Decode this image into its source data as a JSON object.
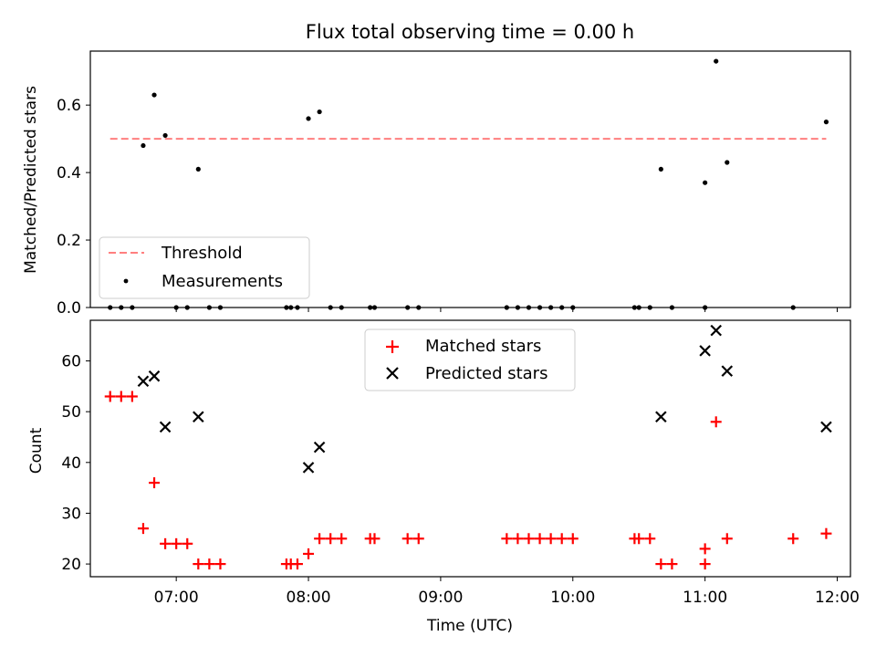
{
  "chart_data": [
    {
      "type": "scatter",
      "title": "Flux total observing time = 0.00 h",
      "xlabel": "",
      "ylabel": "Matched/Predicted stars",
      "ylim": [
        0,
        0.76
      ],
      "yticks": [
        "0.0",
        "0.2",
        "0.4",
        "0.6"
      ],
      "ytick_values": [
        0,
        0.2,
        0.4,
        0.6
      ],
      "legend_position": "lower-left",
      "series": [
        {
          "name": "Threshold",
          "kind": "dashed-line",
          "color": "#ff7f7f",
          "x": [
            "06:30",
            "11:55"
          ],
          "y": [
            0.5,
            0.5
          ]
        },
        {
          "name": "Measurements",
          "kind": "dots",
          "color": "#000000",
          "points": [
            [
              "06:30",
              0
            ],
            [
              "06:35",
              0
            ],
            [
              "06:40",
              0
            ],
            [
              "06:45",
              0.48
            ],
            [
              "06:50",
              0.63
            ],
            [
              "06:55",
              0.51
            ],
            [
              "07:00",
              0
            ],
            [
              "07:05",
              0
            ],
            [
              "07:10",
              0.41
            ],
            [
              "07:15",
              0
            ],
            [
              "07:20",
              0
            ],
            [
              "07:50",
              0
            ],
            [
              "07:52",
              0
            ],
            [
              "07:55",
              0
            ],
            [
              "08:00",
              0.56
            ],
            [
              "08:05",
              0.58
            ],
            [
              "08:10",
              0
            ],
            [
              "08:15",
              0
            ],
            [
              "08:28",
              0
            ],
            [
              "08:30",
              0
            ],
            [
              "08:45",
              0
            ],
            [
              "08:50",
              0
            ],
            [
              "09:30",
              0
            ],
            [
              "09:35",
              0
            ],
            [
              "09:40",
              0
            ],
            [
              "09:45",
              0
            ],
            [
              "09:50",
              0
            ],
            [
              "09:55",
              0
            ],
            [
              "10:00",
              0
            ],
            [
              "10:28",
              0
            ],
            [
              "10:30",
              0
            ],
            [
              "10:35",
              0
            ],
            [
              "10:40",
              0.41
            ],
            [
              "10:45",
              0
            ],
            [
              "11:00",
              0.37
            ],
            [
              "11:00",
              0
            ],
            [
              "11:05",
              0.73
            ],
            [
              "11:10",
              0.43
            ],
            [
              "11:40",
              0
            ],
            [
              "11:55",
              0.55
            ]
          ]
        }
      ]
    },
    {
      "type": "scatter",
      "title": "",
      "xlabel": "Time (UTC)",
      "ylabel": "Count",
      "ylim": [
        17.5,
        68
      ],
      "yticks": [
        "20",
        "30",
        "40",
        "50",
        "60"
      ],
      "ytick_values": [
        20,
        30,
        40,
        50,
        60
      ],
      "xlim": [
        "06:21",
        "12:06"
      ],
      "xticks": [
        "07:00",
        "08:00",
        "09:00",
        "10:00",
        "11:00",
        "12:00"
      ],
      "legend_position": "upper-center",
      "series": [
        {
          "name": "Matched stars",
          "marker": "plus",
          "color": "#ff0000",
          "points": [
            [
              "06:30",
              53
            ],
            [
              "06:35",
              53
            ],
            [
              "06:40",
              53
            ],
            [
              "06:45",
              27
            ],
            [
              "06:50",
              36
            ],
            [
              "06:55",
              24
            ],
            [
              "07:00",
              24
            ],
            [
              "07:05",
              24
            ],
            [
              "07:10",
              20
            ],
            [
              "07:15",
              20
            ],
            [
              "07:20",
              20
            ],
            [
              "07:50",
              20
            ],
            [
              "07:52",
              20
            ],
            [
              "07:55",
              20
            ],
            [
              "08:00",
              22
            ],
            [
              "08:05",
              25
            ],
            [
              "08:10",
              25
            ],
            [
              "08:15",
              25
            ],
            [
              "08:28",
              25
            ],
            [
              "08:30",
              25
            ],
            [
              "08:45",
              25
            ],
            [
              "08:50",
              25
            ],
            [
              "09:30",
              25
            ],
            [
              "09:35",
              25
            ],
            [
              "09:40",
              25
            ],
            [
              "09:45",
              25
            ],
            [
              "09:50",
              25
            ],
            [
              "09:55",
              25
            ],
            [
              "10:00",
              25
            ],
            [
              "10:28",
              25
            ],
            [
              "10:30",
              25
            ],
            [
              "10:35",
              25
            ],
            [
              "10:40",
              20
            ],
            [
              "10:45",
              20
            ],
            [
              "11:00",
              23
            ],
            [
              "11:00",
              20
            ],
            [
              "11:05",
              48
            ],
            [
              "11:10",
              25
            ],
            [
              "11:40",
              25
            ],
            [
              "11:55",
              26
            ]
          ]
        },
        {
          "name": "Predicted stars",
          "marker": "x",
          "color": "#000000",
          "points": [
            [
              "06:45",
              56
            ],
            [
              "06:50",
              57
            ],
            [
              "06:55",
              47
            ],
            [
              "07:10",
              49
            ],
            [
              "08:00",
              39
            ],
            [
              "08:05",
              43
            ],
            [
              "10:40",
              49
            ],
            [
              "11:00",
              62
            ],
            [
              "11:05",
              66
            ],
            [
              "11:10",
              58
            ],
            [
              "11:55",
              47
            ]
          ]
        }
      ]
    }
  ]
}
